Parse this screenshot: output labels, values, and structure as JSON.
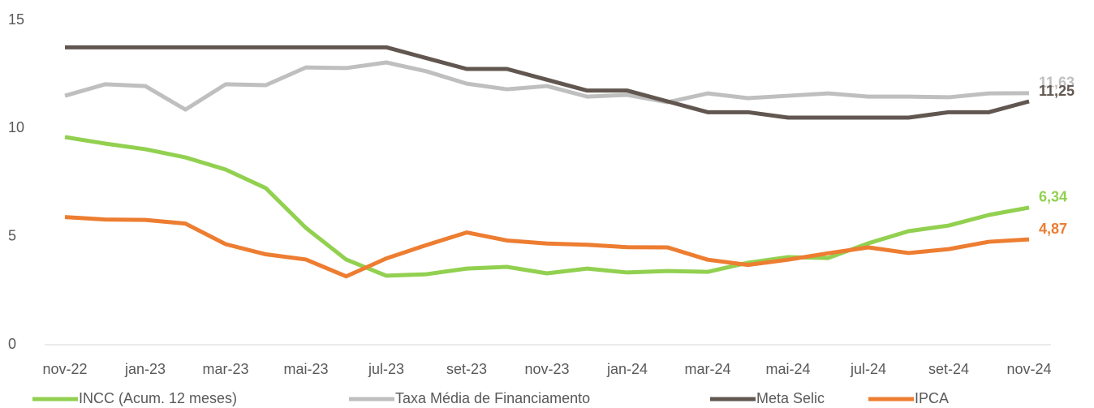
{
  "chart_data": {
    "type": "line",
    "categories": [
      "nov-22",
      null,
      "jan-23",
      null,
      "mar-23",
      null,
      "mai-23",
      null,
      "jul-23",
      null,
      "set-23",
      null,
      "nov-23",
      null,
      "jan-24",
      null,
      "mar-24",
      null,
      "mai-24",
      null,
      "jul-24",
      null,
      "set-24",
      null,
      "nov-24"
    ],
    "ylim": [
      0,
      15
    ],
    "yticks": [
      0,
      5,
      10,
      15
    ],
    "grid": false,
    "legend": "bottom",
    "series": [
      {
        "name": "INCC (Acum. 12 meses)",
        "color": "#92d050",
        "values": [
          9.6,
          9.3,
          9.04,
          8.66,
          8.1,
          7.24,
          5.4,
          3.94,
          3.19,
          3.26,
          3.52,
          3.6,
          3.3,
          3.52,
          3.34,
          3.41,
          3.37,
          3.79,
          4.05,
          4.01,
          4.69,
          5.25,
          5.51,
          6.0,
          6.34
        ],
        "value_labels": [
          null,
          null,
          null,
          null,
          null,
          null,
          null,
          null,
          null,
          null,
          null,
          null,
          null,
          null,
          null,
          null,
          null,
          null,
          null,
          null,
          null,
          null,
          null,
          null,
          "6,34"
        ]
      },
      {
        "name": "Taxa Média de Financiamento",
        "color": "#bfbfbf",
        "values": [
          11.51,
          12.04,
          11.96,
          10.87,
          12.04,
          12.0,
          12.82,
          12.79,
          13.05,
          12.64,
          12.07,
          11.81,
          11.96,
          11.47,
          11.55,
          11.21,
          11.62,
          11.4,
          11.51,
          11.62,
          11.47,
          11.47,
          11.44,
          11.62,
          11.63
        ],
        "value_labels": [
          null,
          null,
          null,
          null,
          null,
          null,
          null,
          null,
          null,
          null,
          null,
          null,
          null,
          null,
          null,
          null,
          null,
          null,
          null,
          null,
          null,
          null,
          null,
          null,
          "11,63"
        ]
      },
      {
        "name": "Meta Selic",
        "color": "#625750",
        "values": [
          13.75,
          13.75,
          13.75,
          13.75,
          13.75,
          13.75,
          13.75,
          13.75,
          13.75,
          13.25,
          12.75,
          12.75,
          12.25,
          11.75,
          11.75,
          11.25,
          10.75,
          10.75,
          10.5,
          10.5,
          10.5,
          10.5,
          10.75,
          10.75,
          11.25
        ],
        "value_labels": [
          null,
          null,
          null,
          null,
          null,
          null,
          null,
          null,
          null,
          null,
          null,
          null,
          null,
          null,
          null,
          null,
          null,
          null,
          null,
          null,
          null,
          null,
          null,
          null,
          "11,25"
        ]
      },
      {
        "name": "IPCA",
        "color": "#ed7d31",
        "values": [
          5.9,
          5.79,
          5.77,
          5.6,
          4.65,
          4.18,
          3.94,
          3.16,
          3.99,
          4.61,
          5.19,
          4.82,
          4.68,
          4.62,
          4.51,
          4.5,
          3.93,
          3.69,
          3.93,
          4.23,
          4.5,
          4.24,
          4.42,
          4.76,
          4.87
        ],
        "value_labels": [
          null,
          null,
          null,
          null,
          null,
          null,
          null,
          null,
          null,
          null,
          null,
          null,
          null,
          null,
          null,
          null,
          null,
          null,
          null,
          null,
          null,
          null,
          null,
          null,
          "4,87"
        ]
      }
    ]
  }
}
